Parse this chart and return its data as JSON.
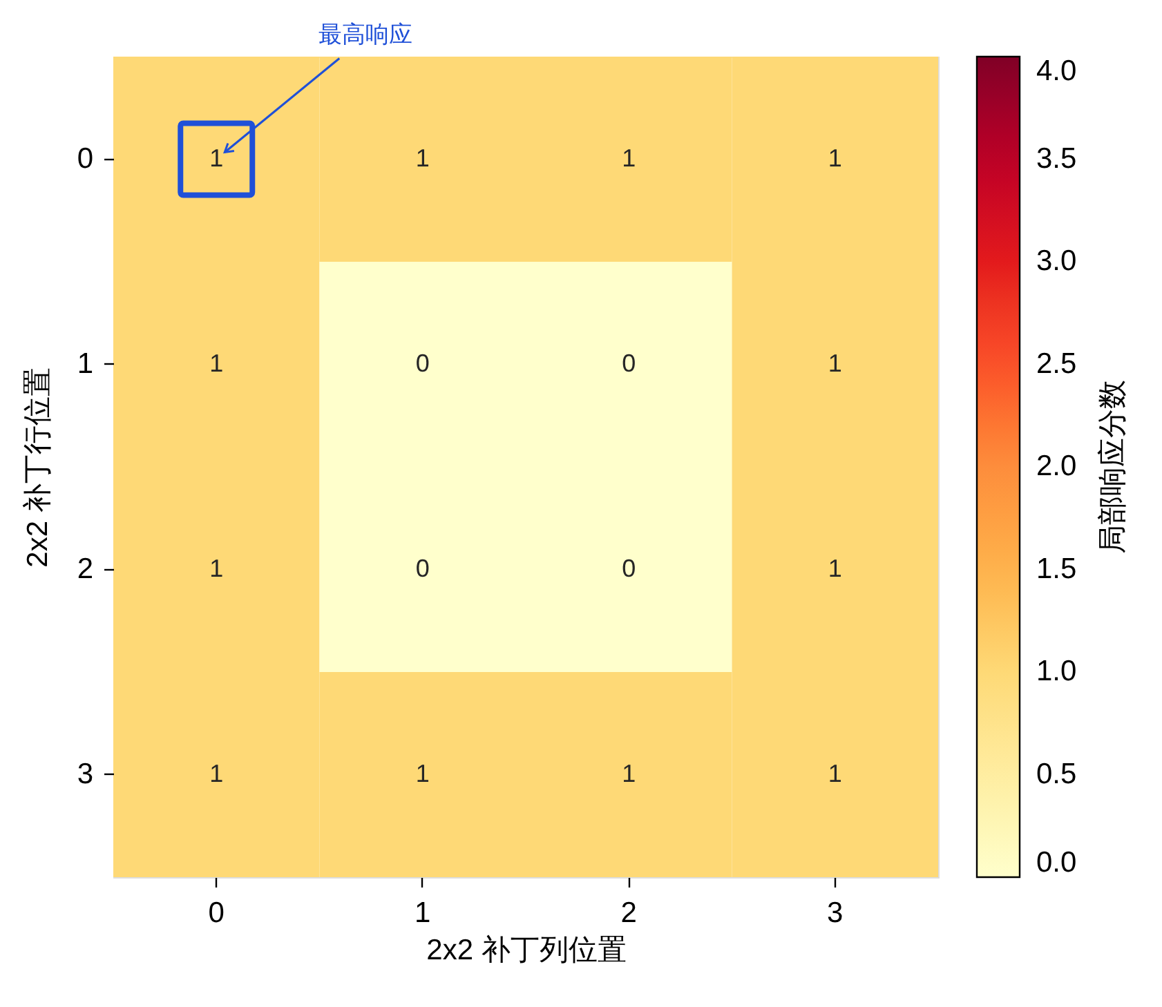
{
  "chart_data": {
    "type": "heatmap",
    "xlabel": "2x2 补丁列位置",
    "ylabel": "2x2 补丁行位置",
    "clabel": "局部响应分数",
    "categories": [
      "0",
      "1",
      "2",
      "3"
    ],
    "y_categories": [
      "0",
      "1",
      "2",
      "3"
    ],
    "cells": [
      [
        1,
        1,
        1,
        1
      ],
      [
        1,
        0,
        0,
        1
      ],
      [
        1,
        0,
        0,
        1
      ],
      [
        1,
        1,
        1,
        1
      ]
    ],
    "data_labels": true,
    "clim": [
      0,
      4
    ],
    "cticks": [
      {
        "value": 0,
        "label": "0.0"
      },
      0.5,
      {
        "value": 1,
        "label": "1.0"
      },
      1.5,
      {
        "value": 2,
        "label": "2.0"
      },
      2.5,
      {
        "value": 3,
        "label": "3.0"
      },
      3.5,
      {
        "value": 4,
        "label": "4.0"
      }
    ],
    "annotations": [
      "最高响应"
    ]
  }
}
